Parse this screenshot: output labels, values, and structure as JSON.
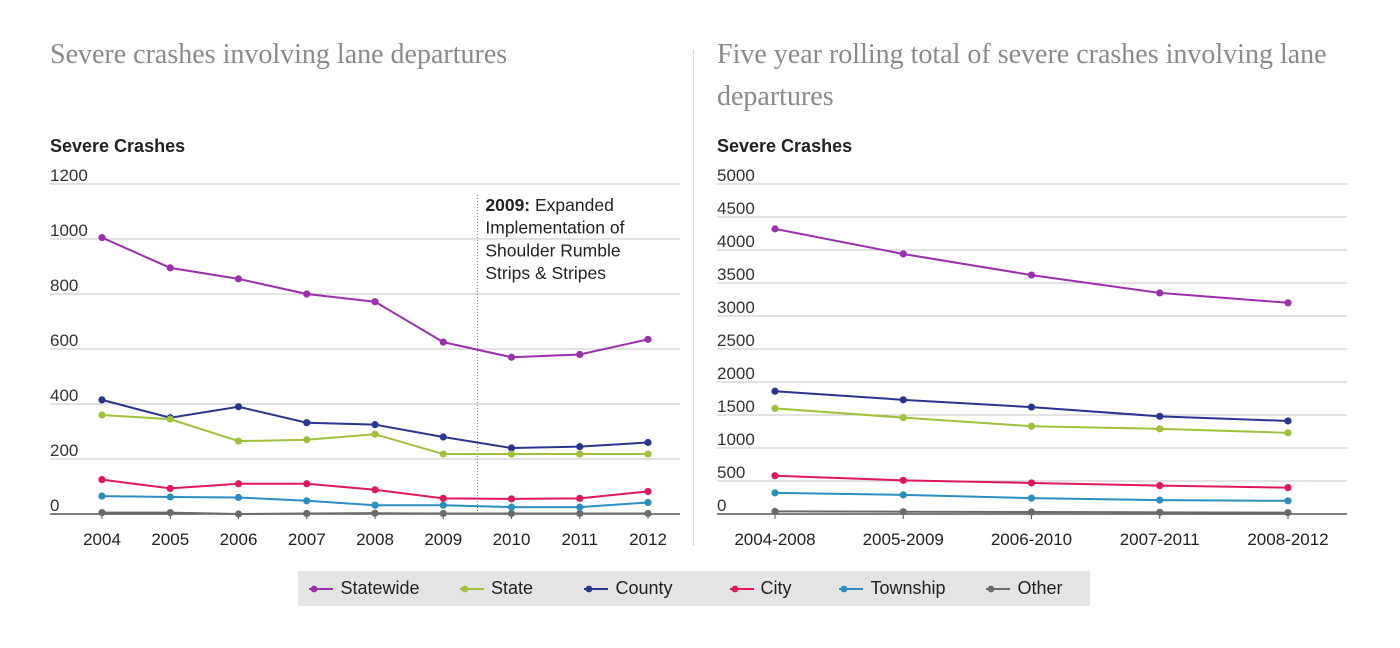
{
  "colors": {
    "Statewide": "#9b2fae",
    "State": "#9fc23a",
    "County": "#2a3590",
    "City": "#e0175f",
    "Township": "#2d8ec2",
    "Other": "#6b6b6b"
  },
  "legend": [
    "Statewide",
    "State",
    "County",
    "City",
    "Township",
    "Other"
  ],
  "chart_data": [
    {
      "type": "line",
      "title": "Severe crashes involving lane departures",
      "ylabel": "Severe Crashes",
      "xlabel": "",
      "ylim": [
        0,
        1200
      ],
      "yticks": [
        0,
        200,
        400,
        600,
        800,
        1000,
        1200
      ],
      "grid": true,
      "categories": [
        "2004",
        "2005",
        "2006",
        "2007",
        "2008",
        "2009",
        "2010",
        "2011",
        "2012"
      ],
      "series": [
        {
          "name": "Statewide",
          "values": [
            1005,
            895,
            855,
            800,
            772,
            625,
            570,
            580,
            635
          ]
        },
        {
          "name": "State",
          "values": [
            360,
            345,
            265,
            270,
            290,
            218,
            218,
            218,
            218
          ]
        },
        {
          "name": "County",
          "values": [
            415,
            350,
            390,
            332,
            325,
            280,
            240,
            245,
            260
          ]
        },
        {
          "name": "City",
          "values": [
            125,
            93,
            110,
            110,
            88,
            57,
            55,
            57,
            82
          ]
        },
        {
          "name": "Township",
          "values": [
            65,
            62,
            60,
            48,
            32,
            32,
            25,
            25,
            42
          ]
        },
        {
          "name": "Other",
          "values": [
            5,
            5,
            0,
            2,
            3,
            2,
            2,
            2,
            2
          ]
        }
      ],
      "annotation": {
        "x": "2009",
        "bold": "2009:",
        "lines": [
          " Expanded",
          "Implementation of",
          "Shoulder Rumble",
          "Strips & Stripes"
        ]
      }
    },
    {
      "type": "line",
      "title": "Five year rolling total of severe crashes involving lane departures",
      "ylabel": "Severe Crashes",
      "xlabel": "",
      "ylim": [
        0,
        5000
      ],
      "yticks": [
        0,
        500,
        1000,
        1500,
        2000,
        2500,
        3000,
        3500,
        4000,
        4500,
        5000
      ],
      "grid": true,
      "categories": [
        "2004-2008",
        "2005-2009",
        "2006-2010",
        "2007-2011",
        "2008-2012"
      ],
      "series": [
        {
          "name": "Statewide",
          "values": [
            4320,
            3940,
            3620,
            3350,
            3200
          ]
        },
        {
          "name": "State",
          "values": [
            1600,
            1460,
            1330,
            1290,
            1230
          ]
        },
        {
          "name": "County",
          "values": [
            1860,
            1730,
            1620,
            1480,
            1410
          ]
        },
        {
          "name": "City",
          "values": [
            580,
            510,
            470,
            430,
            400
          ]
        },
        {
          "name": "Township",
          "values": [
            320,
            290,
            240,
            210,
            200
          ]
        },
        {
          "name": "Other",
          "values": [
            40,
            35,
            30,
            25,
            20
          ]
        }
      ]
    }
  ]
}
